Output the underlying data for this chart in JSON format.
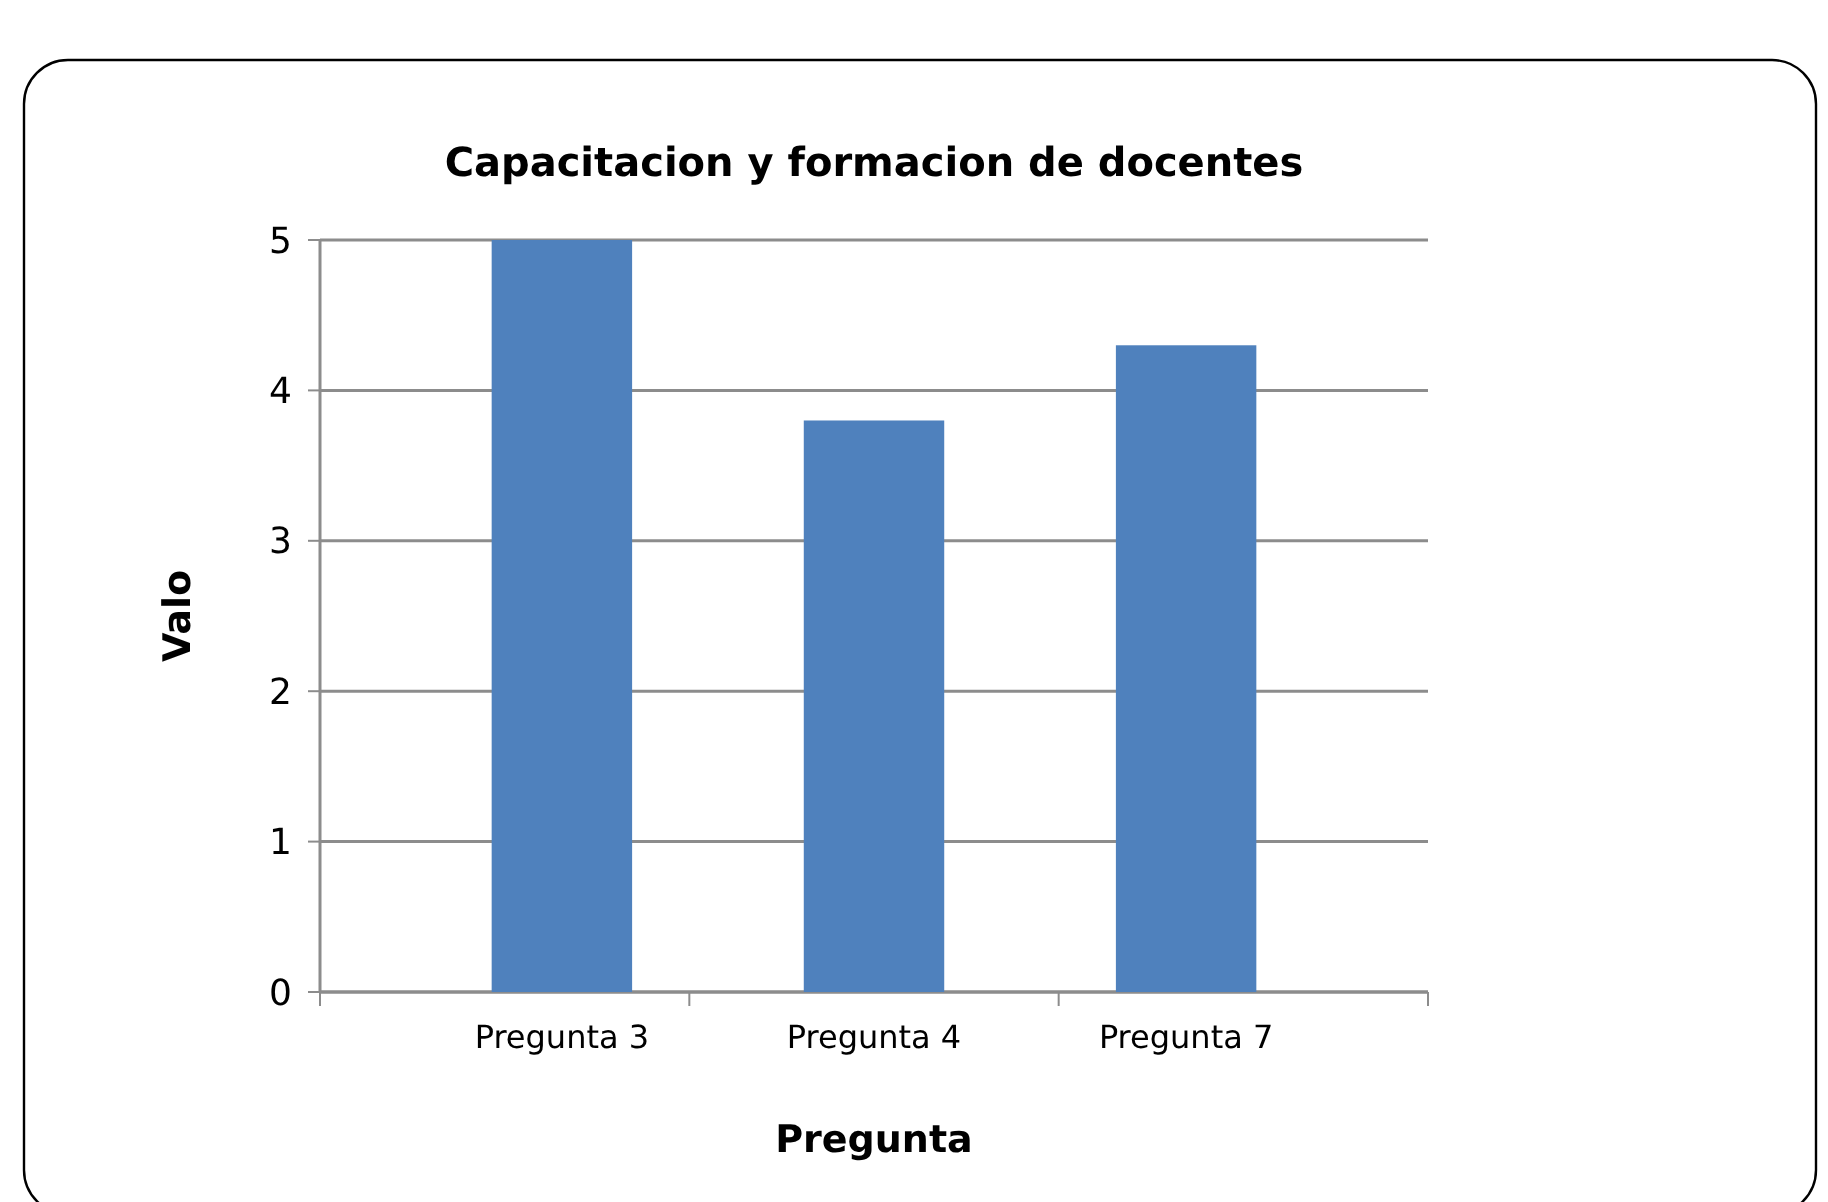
{
  "chart_data": {
    "type": "bar",
    "title": "Capacitacion  y  formacion de docentes",
    "xlabel": "Pregunta",
    "ylabel": "Valo",
    "categories": [
      "Pregunta 3",
      "Pregunta 4",
      "Pregunta 7"
    ],
    "values": [
      5,
      3.8,
      4.3
    ],
    "color": "#4f81bd",
    "ylim": [
      0,
      5
    ],
    "yticks": [
      0,
      1,
      2,
      3,
      4,
      5
    ],
    "grid": "y"
  }
}
